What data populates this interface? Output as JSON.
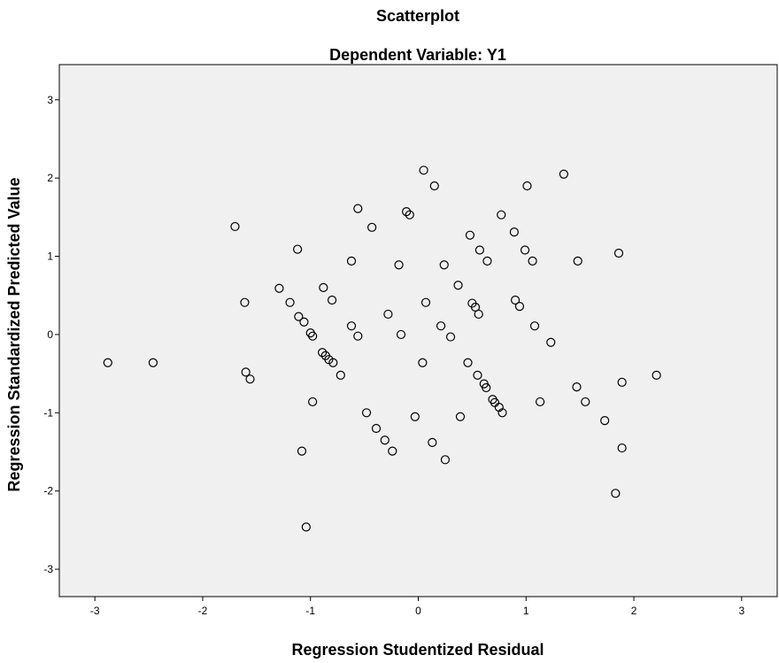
{
  "chart_data": {
    "type": "scatter",
    "title": "Scatterplot",
    "subtitle": "Dependent Variable: Y1",
    "x_label": "Regression Studentized Residual",
    "y_label": "Regression Standardized Predicted Value",
    "xlim": [
      -3.33,
      3.33
    ],
    "ylim": [
      -3.35,
      3.45
    ],
    "xticks": [
      -3,
      -2,
      -1,
      0,
      1,
      2,
      3
    ],
    "yticks": [
      -3,
      -2,
      -1,
      0,
      1,
      2,
      3
    ],
    "color": "#000000",
    "x": [
      -2.88,
      -2.46,
      -1.7,
      -1.61,
      -1.6,
      -1.56,
      -1.29,
      -1.19,
      -1.12,
      -1.11,
      -1.06,
      -1.0,
      -0.98,
      -0.98,
      -1.08,
      -1.04,
      -0.88,
      -0.8,
      -0.89,
      -0.86,
      -0.83,
      -0.79,
      -0.72,
      -0.62,
      -0.62,
      -0.56,
      -0.56,
      -0.48,
      -0.39,
      -0.43,
      -0.31,
      -0.28,
      -0.24,
      -0.18,
      -0.16,
      -0.11,
      -0.08,
      -0.03,
      0.04,
      0.05,
      0.07,
      0.13,
      0.15,
      0.21,
      0.24,
      0.25,
      0.3,
      0.37,
      0.39,
      0.46,
      0.48,
      0.5,
      0.53,
      0.55,
      0.56,
      0.57,
      0.61,
      0.63,
      0.64,
      0.69,
      0.71,
      0.75,
      0.78,
      0.77,
      0.89,
      0.9,
      0.94,
      0.99,
      1.01,
      1.06,
      1.08,
      1.13,
      1.23,
      1.35,
      1.47,
      1.48,
      1.55,
      1.73,
      1.83,
      1.86,
      1.89,
      1.89,
      2.21
    ],
    "y": [
      -0.36,
      -0.36,
      1.38,
      0.41,
      -0.48,
      -0.57,
      0.59,
      0.41,
      1.09,
      0.23,
      0.16,
      0.02,
      -0.02,
      -0.86,
      -1.49,
      -2.46,
      0.6,
      0.44,
      -0.23,
      -0.27,
      -0.32,
      -0.36,
      -0.52,
      0.11,
      0.94,
      1.61,
      -0.02,
      -1.0,
      -1.2,
      1.37,
      -1.35,
      0.26,
      -1.49,
      0.89,
      0.0,
      1.57,
      1.53,
      -1.05,
      -0.36,
      2.1,
      0.41,
      -1.38,
      1.9,
      0.11,
      0.89,
      -1.6,
      -0.03,
      0.63,
      -1.05,
      -0.36,
      1.27,
      0.4,
      0.35,
      -0.52,
      0.26,
      1.08,
      -0.63,
      -0.68,
      0.94,
      -0.83,
      -0.87,
      -0.93,
      -1.0,
      1.53,
      1.31,
      0.44,
      0.36,
      1.08,
      1.9,
      0.94,
      0.11,
      -0.86,
      -0.1,
      2.05,
      -0.67,
      0.94,
      -0.86,
      -1.1,
      -2.03,
      1.04,
      -0.61,
      -1.45,
      -0.52
    ]
  }
}
